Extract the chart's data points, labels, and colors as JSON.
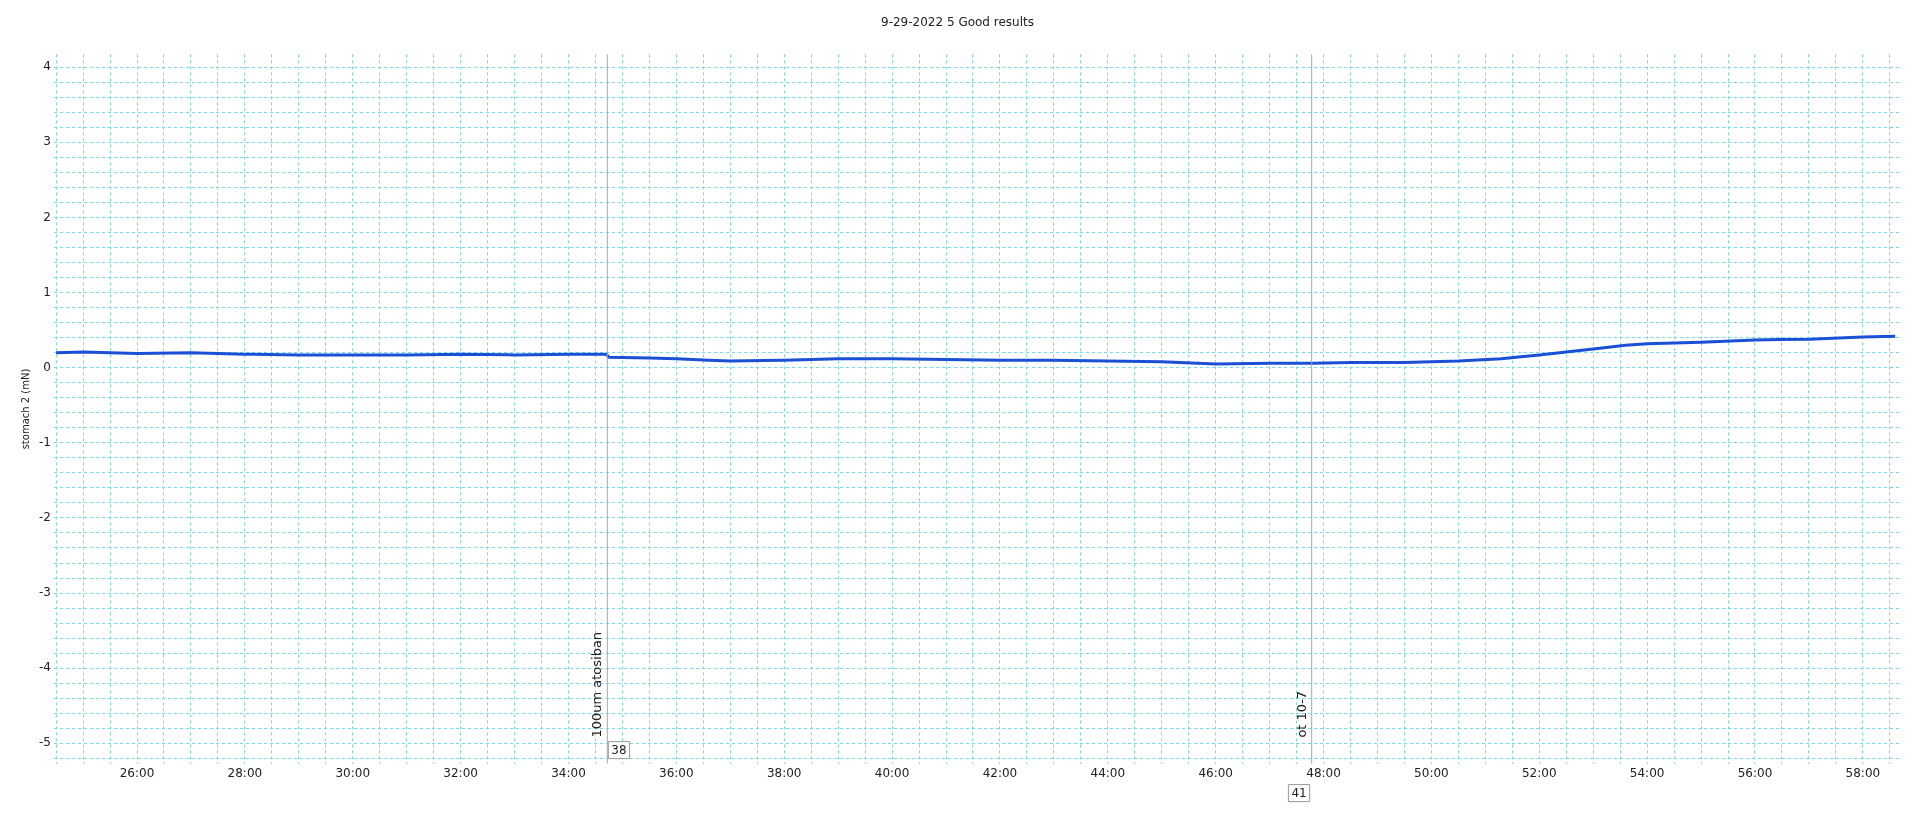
{
  "chart_data": {
    "type": "line",
    "title": "9-29-2022 5 Good results",
    "ylabel": "stomach 2 (mN)",
    "xlim": [
      24.46,
      58.67
    ],
    "ylim": [
      -5.27,
      4.17
    ],
    "grid": true,
    "line_style": "solid",
    "marker": "none",
    "xticks": [
      {
        "value": 24.5,
        "label": null
      },
      {
        "value": 25,
        "label": null
      },
      {
        "value": 25.5,
        "label": null
      },
      {
        "value": 26,
        "label": "26:00"
      },
      {
        "value": 26.5,
        "label": null
      },
      {
        "value": 27,
        "label": null
      },
      {
        "value": 27.5,
        "label": null
      },
      {
        "value": 28,
        "label": "28:00"
      },
      {
        "value": 28.5,
        "label": null
      },
      {
        "value": 29,
        "label": null
      },
      {
        "value": 29.5,
        "label": null
      },
      {
        "value": 30,
        "label": "30:00"
      },
      {
        "value": 30.5,
        "label": null
      },
      {
        "value": 31,
        "label": null
      },
      {
        "value": 31.5,
        "label": null
      },
      {
        "value": 32,
        "label": "32:00"
      },
      {
        "value": 32.5,
        "label": null
      },
      {
        "value": 33,
        "label": null
      },
      {
        "value": 33.5,
        "label": null
      },
      {
        "value": 34,
        "label": "34:00"
      },
      {
        "value": 34.5,
        "label": null
      },
      {
        "value": 35,
        "label": null
      },
      {
        "value": 35.5,
        "label": null
      },
      {
        "value": 36,
        "label": "36:00"
      },
      {
        "value": 36.5,
        "label": null
      },
      {
        "value": 37,
        "label": null
      },
      {
        "value": 37.5,
        "label": null
      },
      {
        "value": 38,
        "label": "38:00"
      },
      {
        "value": 38.5,
        "label": null
      },
      {
        "value": 39,
        "label": null
      },
      {
        "value": 39.5,
        "label": null
      },
      {
        "value": 40,
        "label": "40:00"
      },
      {
        "value": 40.5,
        "label": null
      },
      {
        "value": 41,
        "label": null
      },
      {
        "value": 41.5,
        "label": null
      },
      {
        "value": 42,
        "label": "42:00"
      },
      {
        "value": 42.5,
        "label": null
      },
      {
        "value": 43,
        "label": null
      },
      {
        "value": 43.5,
        "label": null
      },
      {
        "value": 44,
        "label": "44:00"
      },
      {
        "value": 44.5,
        "label": null
      },
      {
        "value": 45,
        "label": null
      },
      {
        "value": 45.5,
        "label": null
      },
      {
        "value": 46,
        "label": "46:00"
      },
      {
        "value": 46.5,
        "label": null
      },
      {
        "value": 47,
        "label": null
      },
      {
        "value": 47.5,
        "label": null
      },
      {
        "value": 48,
        "label": "48:00"
      },
      {
        "value": 48.5,
        "label": null
      },
      {
        "value": 49,
        "label": null
      },
      {
        "value": 49.5,
        "label": null
      },
      {
        "value": 50,
        "label": "50:00"
      },
      {
        "value": 50.5,
        "label": null
      },
      {
        "value": 51,
        "label": null
      },
      {
        "value": 51.5,
        "label": null
      },
      {
        "value": 52,
        "label": "52:00"
      },
      {
        "value": 52.5,
        "label": null
      },
      {
        "value": 53,
        "label": null
      },
      {
        "value": 53.5,
        "label": null
      },
      {
        "value": 54,
        "label": "54:00"
      },
      {
        "value": 54.5,
        "label": null
      },
      {
        "value": 55,
        "label": null
      },
      {
        "value": 55.5,
        "label": null
      },
      {
        "value": 56,
        "label": "56:00"
      },
      {
        "value": 56.5,
        "label": null
      },
      {
        "value": 57,
        "label": null
      },
      {
        "value": 57.5,
        "label": null
      },
      {
        "value": 58,
        "label": "58:00"
      },
      {
        "value": 58.5,
        "label": null
      }
    ],
    "yticks": [
      {
        "value": -5.2,
        "label": null
      },
      -5,
      {
        "value": -4.8,
        "label": null
      },
      {
        "value": -4.6,
        "label": null
      },
      {
        "value": -4.4,
        "label": null
      },
      {
        "value": -4.2,
        "label": null
      },
      -4,
      {
        "value": -3.8,
        "label": null
      },
      {
        "value": -3.6,
        "label": null
      },
      {
        "value": -3.4,
        "label": null
      },
      {
        "value": -3.2,
        "label": null
      },
      -3,
      {
        "value": -2.8,
        "label": null
      },
      {
        "value": -2.6,
        "label": null
      },
      {
        "value": -2.4,
        "label": null
      },
      {
        "value": -2.2,
        "label": null
      },
      -2,
      {
        "value": -1.8,
        "label": null
      },
      {
        "value": -1.6,
        "label": null
      },
      {
        "value": -1.4,
        "label": null
      },
      {
        "value": -1.2,
        "label": null
      },
      -1,
      {
        "value": -0.8,
        "label": null
      },
      {
        "value": -0.6,
        "label": null
      },
      {
        "value": -0.4,
        "label": null
      },
      {
        "value": -0.2,
        "label": null
      },
      0,
      {
        "value": 0.2,
        "label": null
      },
      {
        "value": 0.4,
        "label": null
      },
      {
        "value": 0.6,
        "label": null
      },
      {
        "value": 0.8,
        "label": null
      },
      1,
      {
        "value": 1.2,
        "label": null
      },
      {
        "value": 1.4,
        "label": null
      },
      {
        "value": 1.6,
        "label": null
      },
      {
        "value": 1.8,
        "label": null
      },
      2,
      {
        "value": 2.2,
        "label": null
      },
      {
        "value": 2.4,
        "label": null
      },
      {
        "value": 2.6,
        "label": null
      },
      {
        "value": 2.8,
        "label": null
      },
      3,
      {
        "value": 3.2,
        "label": null
      },
      {
        "value": 3.4,
        "label": null
      },
      {
        "value": 3.6,
        "label": null
      },
      {
        "value": 3.8,
        "label": null
      },
      4
    ],
    "x": [
      24.5,
      25,
      25.5,
      26,
      27,
      28,
      29,
      30,
      31,
      32,
      33,
      34,
      34.7,
      34.75,
      35.5,
      36,
      36.6,
      37,
      38,
      39,
      40,
      41,
      42,
      43,
      44,
      45,
      46,
      47,
      47.8,
      48.5,
      49.5,
      50.5,
      51.3,
      52,
      52.5,
      53,
      53.6,
      54,
      55,
      56,
      57,
      58,
      58.6
    ],
    "series": [
      {
        "color": "#1a4fd6",
        "values": [
          0.2,
          0.21,
          0.2,
          0.19,
          0.2,
          0.18,
          0.17,
          0.17,
          0.17,
          0.18,
          0.17,
          0.18,
          0.18,
          0.14,
          0.13,
          0.12,
          0.1,
          0.09,
          0.1,
          0.12,
          0.12,
          0.11,
          0.1,
          0.1,
          0.09,
          0.08,
          0.05,
          0.06,
          0.06,
          0.07,
          0.07,
          0.09,
          0.12,
          0.17,
          0.21,
          0.25,
          0.3,
          0.32,
          0.34,
          0.37,
          0.38,
          0.41,
          0.42
        ]
      }
    ],
    "ref_lines": [
      {
        "axis": "x",
        "value": 34.72,
        "label": "100um atosiban",
        "color": "#a8a8a8"
      },
      {
        "axis": "x",
        "value": 47.78,
        "label": "ot 10-7",
        "color": "#a8a8a8"
      }
    ],
    "annotations": [
      {
        "text": "38",
        "x": 34.72,
        "y": -5.27
      },
      {
        "text": "41",
        "x": 47.78,
        "y": -5.27
      }
    ]
  }
}
